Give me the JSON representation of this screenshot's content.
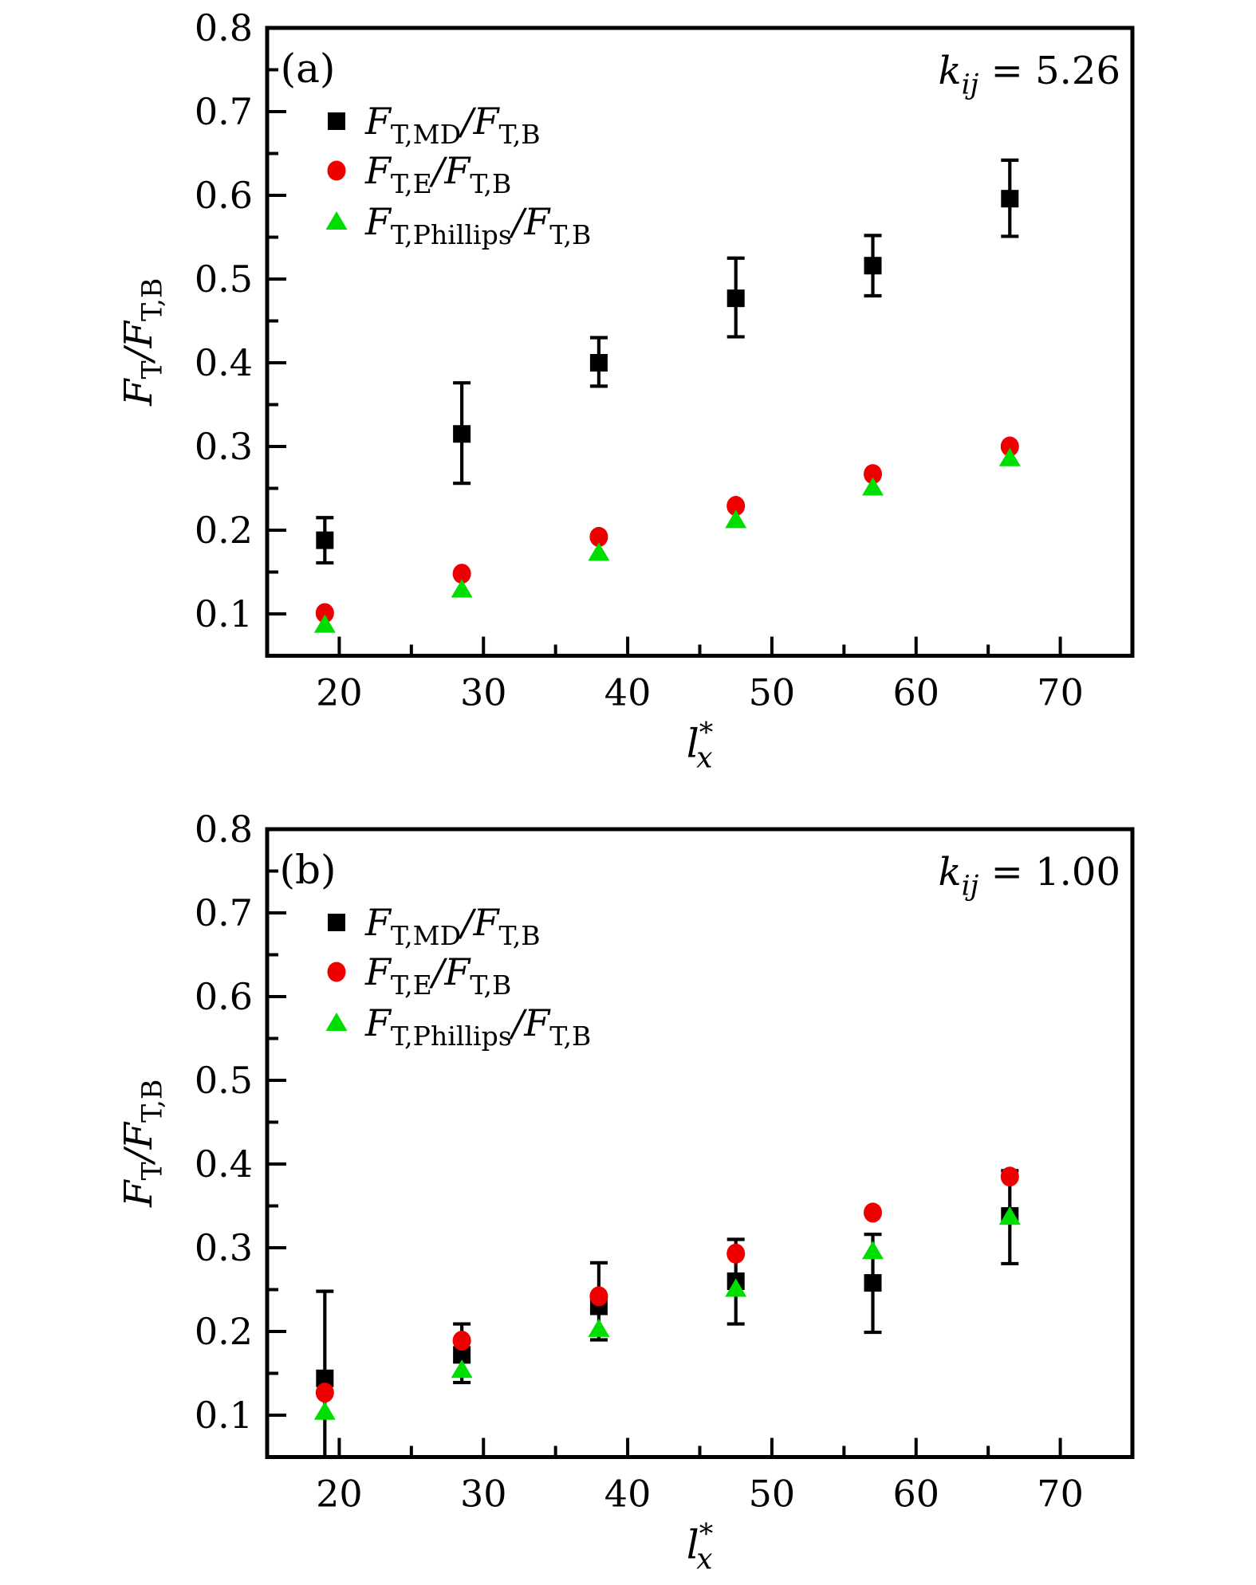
{
  "figure": {
    "background": "#ffffff",
    "axis_color": "#000000",
    "text_color": "#000000",
    "series_colors": {
      "md": "#000000",
      "e": "#ee0000",
      "phillips": "#00dd00"
    }
  },
  "chart_data": [
    {
      "type": "scatter",
      "panel_id": "a",
      "panel_label": "(a)",
      "annotation": {
        "text": "k_ij = 5.26",
        "parts": [
          {
            "t": "k",
            "s": "it"
          },
          {
            "t": "ij",
            "s": "subit"
          },
          {
            "t": " = 5.26",
            "s": "rm"
          }
        ]
      },
      "xlabel": {
        "text": "l*_x",
        "parts": [
          {
            "t": "l",
            "s": "it"
          },
          {
            "t": "*",
            "s": "sup"
          },
          {
            "t": "x",
            "s": "subit",
            "dxb": -0.42
          }
        ]
      },
      "ylabel": {
        "text": "F_T / F_T,B",
        "parts": [
          {
            "t": "F",
            "s": "it"
          },
          {
            "t": "T",
            "s": "sub"
          },
          {
            "t": "/",
            "s": "it"
          },
          {
            "t": "F",
            "s": "it"
          },
          {
            "t": "T,B",
            "s": "sub"
          }
        ]
      },
      "xlim": [
        15,
        75
      ],
      "ylim": [
        0.05,
        0.8
      ],
      "x_major_ticks": [
        20,
        30,
        40,
        50,
        60,
        70
      ],
      "x_minor_ticks": [
        25,
        35,
        45,
        55,
        65,
        75
      ],
      "y_major_ticks": [
        0.1,
        0.2,
        0.3,
        0.4,
        0.5,
        0.6,
        0.7,
        0.8
      ],
      "y_minor_ticks": [
        0.15,
        0.25,
        0.35,
        0.45,
        0.55,
        0.65,
        0.75
      ],
      "grid": false,
      "legend_position": "upper-left",
      "x": [
        19,
        28.5,
        38,
        47.5,
        57,
        66.5
      ],
      "series": [
        {
          "name": "F_T,MD/F_T,B",
          "label_parts": [
            {
              "t": "F",
              "s": "it"
            },
            {
              "t": "T,MD",
              "s": "sub"
            },
            {
              "t": "/",
              "s": "it"
            },
            {
              "t": "F",
              "s": "it"
            },
            {
              "t": "T,B",
              "s": "sub"
            }
          ],
          "marker": "square",
          "color": "#000000",
          "values": [
            0.188,
            0.315,
            0.4,
            0.477,
            0.516,
            0.596
          ],
          "err_up": [
            0.027,
            0.061,
            0.03,
            0.048,
            0.036,
            0.046
          ],
          "err_down": [
            0.027,
            0.059,
            0.028,
            0.046,
            0.036,
            0.045
          ]
        },
        {
          "name": "F_T,E/F_T,B",
          "label_parts": [
            {
              "t": "F",
              "s": "it"
            },
            {
              "t": "T,E",
              "s": "sub"
            },
            {
              "t": "/",
              "s": "it"
            },
            {
              "t": "F",
              "s": "it"
            },
            {
              "t": "T,B",
              "s": "sub"
            }
          ],
          "marker": "circle",
          "color": "#ee0000",
          "values": [
            0.101,
            0.148,
            0.192,
            0.229,
            0.267,
            0.3
          ]
        },
        {
          "name": "F_T,Phillips/F_T,B",
          "label_parts": [
            {
              "t": "F",
              "s": "it"
            },
            {
              "t": "T,Phillips",
              "s": "sub"
            },
            {
              "t": "/",
              "s": "it"
            },
            {
              "t": "F",
              "s": "it"
            },
            {
              "t": "T,B",
              "s": "sub"
            }
          ],
          "marker": "triangle-up",
          "color": "#00dd00",
          "values": [
            0.087,
            0.129,
            0.173,
            0.212,
            0.251,
            0.286
          ]
        }
      ]
    },
    {
      "type": "scatter",
      "panel_id": "b",
      "panel_label": "(b)",
      "annotation": {
        "text": "k_ij = 1.00",
        "parts": [
          {
            "t": "k",
            "s": "it"
          },
          {
            "t": "ij",
            "s": "subit"
          },
          {
            "t": " = 1.00",
            "s": "rm"
          }
        ]
      },
      "xlabel": {
        "text": "l*_x",
        "parts": [
          {
            "t": "l",
            "s": "it"
          },
          {
            "t": "*",
            "s": "sup"
          },
          {
            "t": "x",
            "s": "subit",
            "dxb": -0.42
          }
        ]
      },
      "ylabel": {
        "text": "F_T / F_T,B",
        "parts": [
          {
            "t": "F",
            "s": "it"
          },
          {
            "t": "T",
            "s": "sub"
          },
          {
            "t": "/",
            "s": "it"
          },
          {
            "t": "F",
            "s": "it"
          },
          {
            "t": "T,B",
            "s": "sub"
          }
        ]
      },
      "xlim": [
        15,
        75
      ],
      "ylim": [
        0.05,
        0.8
      ],
      "x_major_ticks": [
        20,
        30,
        40,
        50,
        60,
        70
      ],
      "x_minor_ticks": [
        25,
        35,
        45,
        55,
        65,
        75
      ],
      "y_major_ticks": [
        0.1,
        0.2,
        0.3,
        0.4,
        0.5,
        0.6,
        0.7,
        0.8
      ],
      "y_minor_ticks": [
        0.15,
        0.25,
        0.35,
        0.45,
        0.55,
        0.65,
        0.75
      ],
      "grid": false,
      "legend_position": "upper-left",
      "x": [
        19,
        28.5,
        38,
        47.5,
        57,
        66.5
      ],
      "series": [
        {
          "name": "F_T,MD/F_T,B",
          "label_parts": [
            {
              "t": "F",
              "s": "it"
            },
            {
              "t": "T,MD",
              "s": "sub"
            },
            {
              "t": "/",
              "s": "it"
            },
            {
              "t": "F",
              "s": "it"
            },
            {
              "t": "T,B",
              "s": "sub"
            }
          ],
          "marker": "square",
          "color": "#000000",
          "values": [
            0.144,
            0.172,
            0.23,
            0.26,
            0.258,
            0.338
          ],
          "err_up": [
            0.104,
            0.037,
            0.052,
            0.05,
            0.058,
            0.054
          ],
          "err_down": [
            0.096,
            0.033,
            0.04,
            0.051,
            0.059,
            0.057
          ]
        },
        {
          "name": "F_T,E/F_T,B",
          "label_parts": [
            {
              "t": "F",
              "s": "it"
            },
            {
              "t": "T,E",
              "s": "sub"
            },
            {
              "t": "/",
              "s": "it"
            },
            {
              "t": "F",
              "s": "it"
            },
            {
              "t": "T,B",
              "s": "sub"
            }
          ],
          "marker": "circle",
          "color": "#ee0000",
          "values": [
            0.127,
            0.189,
            0.242,
            0.293,
            0.342,
            0.385
          ]
        },
        {
          "name": "F_T,Phillips/F_T,B",
          "label_parts": [
            {
              "t": "F",
              "s": "it"
            },
            {
              "t": "T,Phillips",
              "s": "sub"
            },
            {
              "t": "/",
              "s": "it"
            },
            {
              "t": "F",
              "s": "it"
            },
            {
              "t": "T,B",
              "s": "sub"
            }
          ],
          "marker": "triangle-up",
          "color": "#00dd00",
          "values": [
            0.104,
            0.154,
            0.203,
            0.251,
            0.296,
            0.337
          ]
        }
      ]
    }
  ]
}
